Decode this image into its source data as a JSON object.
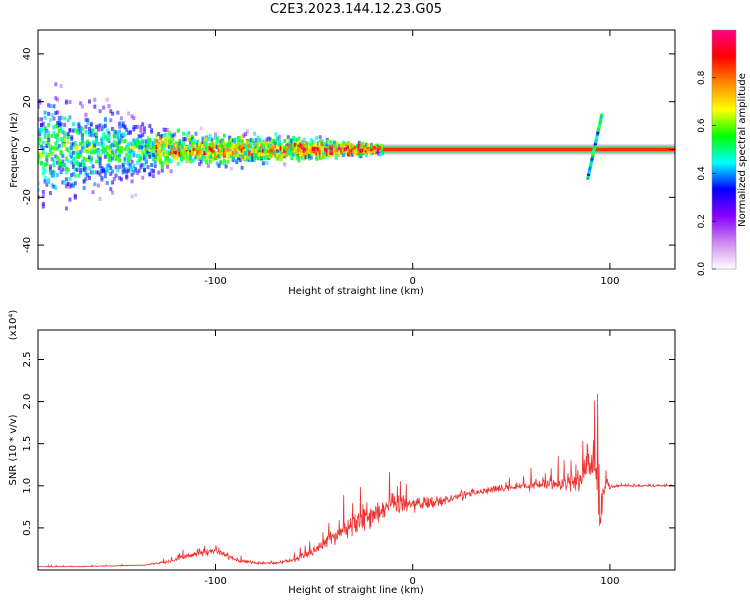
{
  "figure": {
    "title": "C2E3.2023.144.12.23.G05"
  },
  "chart_data": [
    {
      "type": "heatmap",
      "xlabel": "Height of straight line (km)",
      "ylabel": "Frequency (Hz)",
      "xlim": [
        -190,
        133
      ],
      "ylim": [
        -50,
        50
      ],
      "xticks": [
        -100,
        0,
        100
      ],
      "yticks": [
        -40,
        -20,
        0,
        20,
        40
      ],
      "grid": false,
      "colorbar": {
        "label": "Normalized spectral amplitude",
        "range": [
          0,
          1
        ],
        "ticks": [
          "0.0",
          "0.2",
          "0.4",
          "0.6",
          "0.8"
        ],
        "colors": [
          "#ffffff",
          "#cc88ee",
          "#8800ff",
          "#0000ff",
          "#00ffff",
          "#00ff00",
          "#ffff00",
          "#ff8800",
          "#ff0000",
          "#ff0088"
        ]
      },
      "features": {
        "noise_region_x": [
          -190,
          -15
        ],
        "carrier_frequency_hz": 0,
        "carrier_x": [
          -15,
          133
        ],
        "spread_hz_at_x": [
          [
            -190,
            48
          ],
          [
            -150,
            30
          ],
          [
            -120,
            12
          ],
          [
            -80,
            10
          ],
          [
            -40,
            6
          ],
          [
            -15,
            3
          ],
          [
            0,
            1
          ],
          [
            90,
            1
          ],
          [
            133,
            1
          ]
        ],
        "disturbance_x": 92,
        "disturbance_freq_range": [
          -12,
          15
        ]
      }
    },
    {
      "type": "line",
      "xlabel": "Height of straight line (km)",
      "ylabel": "SNR (10 * v/v)",
      "y_multiplier_label": "(x10⁴)",
      "xlim": [
        -190,
        133
      ],
      "ylim": [
        0,
        2.85
      ],
      "xticks": [
        -100,
        0,
        100
      ],
      "yticks": [
        "0.5",
        "1.0",
        "1.5",
        "2.0",
        "2.5"
      ],
      "grid": false,
      "series": [
        {
          "color": "#ee3333",
          "x": [
            -190,
            -170,
            -150,
            -135,
            -120,
            -110,
            -100,
            -90,
            -80,
            -70,
            -60,
            -50,
            -40,
            -30,
            -20,
            -10,
            0,
            10,
            20,
            30,
            40,
            50,
            60,
            70,
            80,
            85,
            90,
            92,
            95,
            98,
            100,
            105,
            110,
            120,
            133
          ],
          "y": [
            0.04,
            0.04,
            0.05,
            0.06,
            0.12,
            0.2,
            0.22,
            0.12,
            0.08,
            0.08,
            0.12,
            0.22,
            0.4,
            0.55,
            0.68,
            0.8,
            0.78,
            0.8,
            0.85,
            0.92,
            0.95,
            0.98,
            1.0,
            1.02,
            1.05,
            1.1,
            1.2,
            1.5,
            0.6,
            1.1,
            0.98,
            1.0,
            1.0,
            1.0,
            1.0
          ],
          "noise_amplitude": [
            0.01,
            0.01,
            0.01,
            0.01,
            0.05,
            0.08,
            0.1,
            0.05,
            0.03,
            0.04,
            0.06,
            0.12,
            0.2,
            0.3,
            0.35,
            0.25,
            0.2,
            0.15,
            0.12,
            0.1,
            0.1,
            0.1,
            0.12,
            0.15,
            0.25,
            0.35,
            0.6,
            1.3,
            0.7,
            0.3,
            0.05,
            0.02,
            0.02,
            0.02,
            0.02
          ]
        }
      ]
    }
  ]
}
